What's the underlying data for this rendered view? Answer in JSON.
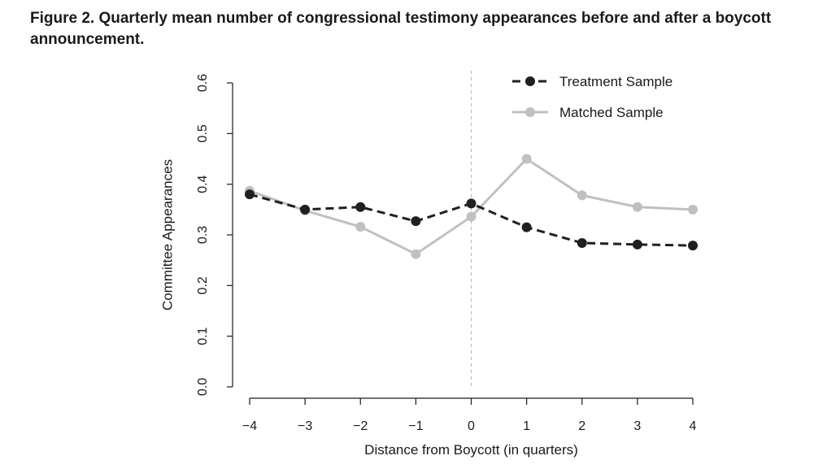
{
  "figure": {
    "title": "Figure 2.  Quarterly mean number of congressional testimony appearances before and after a boycott announcement."
  },
  "chart_data": {
    "type": "line",
    "x": [
      -4,
      -3,
      -2,
      -1,
      0,
      1,
      2,
      3,
      4
    ],
    "x_tick_labels": [
      "−4",
      "−3",
      "−2",
      "−1",
      "0",
      "1",
      "2",
      "3",
      "4"
    ],
    "y_tick_labels": [
      "0.0",
      "0.1",
      "0.2",
      "0.3",
      "0.4",
      "0.5",
      "0.6"
    ],
    "y_ticks": [
      0.0,
      0.1,
      0.2,
      0.3,
      0.4,
      0.5,
      0.6
    ],
    "xlabel": "Distance from Boycott (in quarters)",
    "ylabel": "Committee Appearances",
    "xlim": [
      -4,
      4
    ],
    "ylim": [
      0.0,
      0.6
    ],
    "reference_line_x": 0,
    "grid": false,
    "legend_position": "top-right",
    "series": [
      {
        "name": "Treatment Sample",
        "values": [
          0.38,
          0.35,
          0.355,
          0.327,
          0.362,
          0.315,
          0.284,
          0.281,
          0.279
        ],
        "color": "#231f20",
        "line_style": "dashed"
      },
      {
        "name": "Matched Sample",
        "values": [
          0.387,
          0.348,
          0.316,
          0.262,
          0.336,
          0.45,
          0.378,
          0.355,
          0.35
        ],
        "color": "#c0c0c2",
        "line_style": "solid"
      }
    ]
  }
}
